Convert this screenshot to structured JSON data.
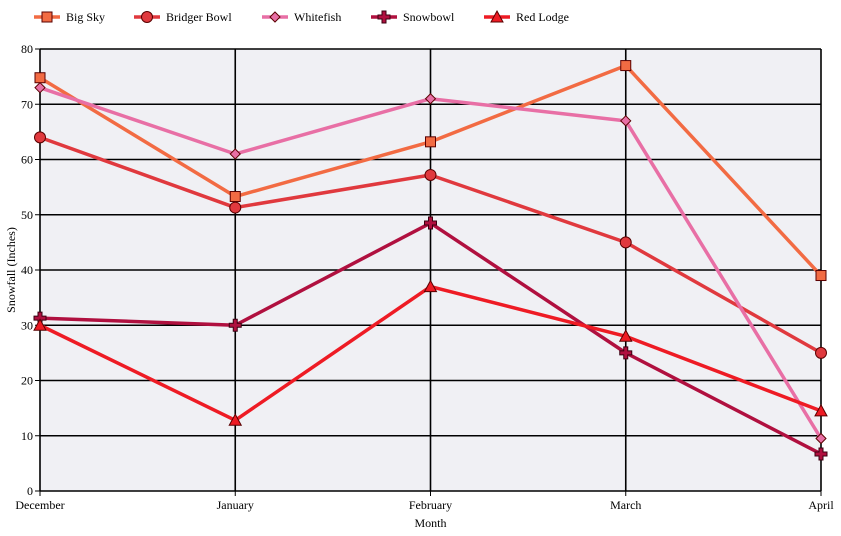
{
  "chart_data": {
    "type": "line",
    "xlabel": "Month",
    "ylabel": "Snowfall (Inches)",
    "ylim": [
      0,
      80
    ],
    "yticks": [
      0,
      10,
      20,
      30,
      40,
      50,
      60,
      70,
      80
    ],
    "grid": true,
    "legend_position": "top-left",
    "categories": [
      "December",
      "January",
      "February",
      "March",
      "April"
    ],
    "series": [
      {
        "name": "Big Sky",
        "color": "#F26B43",
        "marker": "square",
        "values": [
          74.8,
          53.3,
          63.2,
          77.0,
          39.0
        ]
      },
      {
        "name": "Bridger Bowl",
        "color": "#E0393E",
        "marker": "circle",
        "values": [
          64.0,
          51.3,
          57.2,
          45.0,
          25.0
        ]
      },
      {
        "name": "Whitefish",
        "color": "#E86FA5",
        "marker": "diamond",
        "values": [
          73.0,
          61.0,
          71.0,
          67.0,
          9.5
        ]
      },
      {
        "name": "Snowbowl",
        "color": "#B0103F",
        "marker": "cross",
        "values": [
          31.3,
          30.0,
          48.5,
          25.0,
          6.7
        ]
      },
      {
        "name": "Red Lodge",
        "color": "#EE1B24",
        "marker": "triangle",
        "values": [
          30.0,
          12.8,
          37.0,
          28.0,
          14.5
        ]
      }
    ]
  }
}
